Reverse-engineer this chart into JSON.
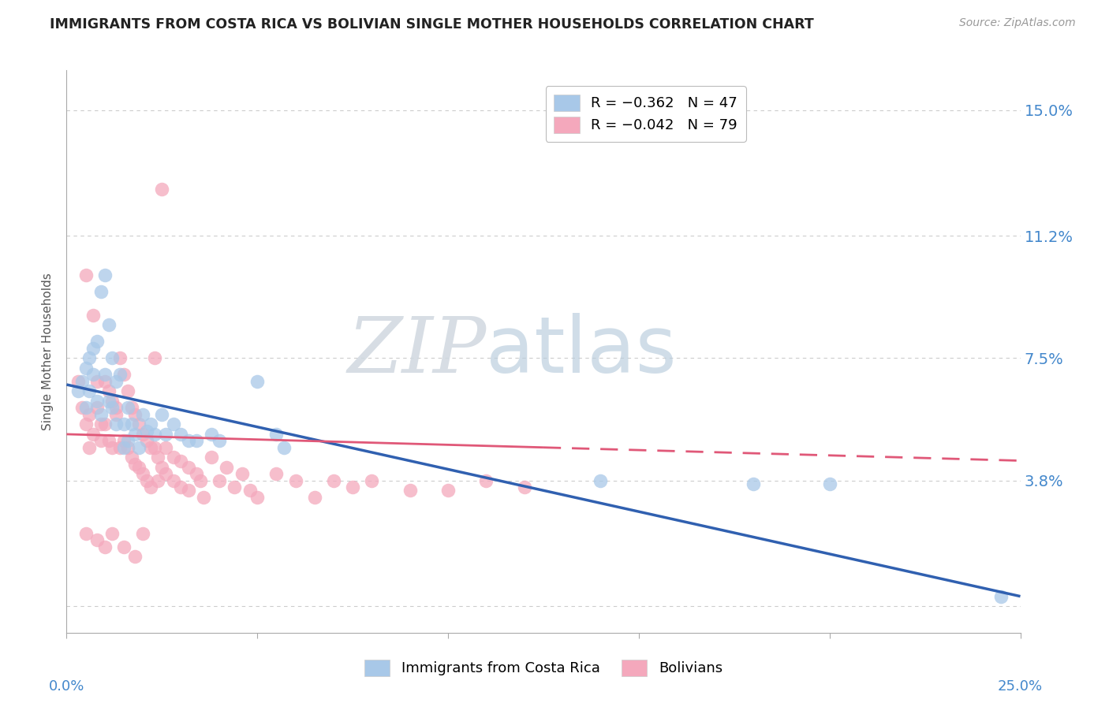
{
  "title": "IMMIGRANTS FROM COSTA RICA VS BOLIVIAN SINGLE MOTHER HOUSEHOLDS CORRELATION CHART",
  "source": "Source: ZipAtlas.com",
  "ylabel_label": "Single Mother Households",
  "ylabel_ticks": [
    0.0,
    0.038,
    0.075,
    0.112,
    0.15
  ],
  "ylabel_tick_labels": [
    "",
    "3.8%",
    "7.5%",
    "11.2%",
    "15.0%"
  ],
  "xmin": 0.0,
  "xmax": 0.25,
  "ymin": -0.008,
  "ymax": 0.162,
  "legend_entries": [
    {
      "label": "R = −0.362   N = 47",
      "color": "#a8c8e8"
    },
    {
      "label": "R = −0.042   N = 79",
      "color": "#f4a8bc"
    }
  ],
  "blue_color": "#a8c8e8",
  "pink_color": "#f4a8bc",
  "trend_blue_color": "#3060b0",
  "trend_pink_color": "#e05878",
  "watermark_zip": "ZIP",
  "watermark_atlas": "atlas",
  "blue_scatter": [
    [
      0.003,
      0.065
    ],
    [
      0.004,
      0.068
    ],
    [
      0.005,
      0.072
    ],
    [
      0.005,
      0.06
    ],
    [
      0.006,
      0.075
    ],
    [
      0.006,
      0.065
    ],
    [
      0.007,
      0.078
    ],
    [
      0.007,
      0.07
    ],
    [
      0.008,
      0.08
    ],
    [
      0.008,
      0.062
    ],
    [
      0.009,
      0.095
    ],
    [
      0.009,
      0.058
    ],
    [
      0.01,
      0.1
    ],
    [
      0.01,
      0.07
    ],
    [
      0.011,
      0.062
    ],
    [
      0.011,
      0.085
    ],
    [
      0.012,
      0.075
    ],
    [
      0.012,
      0.06
    ],
    [
      0.013,
      0.068
    ],
    [
      0.013,
      0.055
    ],
    [
      0.014,
      0.07
    ],
    [
      0.015,
      0.055
    ],
    [
      0.015,
      0.048
    ],
    [
      0.016,
      0.06
    ],
    [
      0.016,
      0.05
    ],
    [
      0.017,
      0.055
    ],
    [
      0.018,
      0.052
    ],
    [
      0.019,
      0.048
    ],
    [
      0.02,
      0.058
    ],
    [
      0.021,
      0.053
    ],
    [
      0.022,
      0.055
    ],
    [
      0.023,
      0.052
    ],
    [
      0.025,
      0.058
    ],
    [
      0.026,
      0.052
    ],
    [
      0.028,
      0.055
    ],
    [
      0.03,
      0.052
    ],
    [
      0.032,
      0.05
    ],
    [
      0.034,
      0.05
    ],
    [
      0.038,
      0.052
    ],
    [
      0.04,
      0.05
    ],
    [
      0.05,
      0.068
    ],
    [
      0.055,
      0.052
    ],
    [
      0.057,
      0.048
    ],
    [
      0.14,
      0.038
    ],
    [
      0.18,
      0.037
    ],
    [
      0.2,
      0.037
    ],
    [
      0.245,
      0.003
    ]
  ],
  "pink_scatter": [
    [
      0.003,
      0.068
    ],
    [
      0.004,
      0.06
    ],
    [
      0.005,
      0.1
    ],
    [
      0.005,
      0.055
    ],
    [
      0.006,
      0.058
    ],
    [
      0.006,
      0.048
    ],
    [
      0.007,
      0.052
    ],
    [
      0.007,
      0.088
    ],
    [
      0.008,
      0.068
    ],
    [
      0.008,
      0.06
    ],
    [
      0.009,
      0.055
    ],
    [
      0.009,
      0.05
    ],
    [
      0.01,
      0.068
    ],
    [
      0.01,
      0.055
    ],
    [
      0.011,
      0.065
    ],
    [
      0.011,
      0.05
    ],
    [
      0.012,
      0.062
    ],
    [
      0.012,
      0.048
    ],
    [
      0.013,
      0.058
    ],
    [
      0.013,
      0.06
    ],
    [
      0.014,
      0.075
    ],
    [
      0.014,
      0.048
    ],
    [
      0.015,
      0.07
    ],
    [
      0.015,
      0.05
    ],
    [
      0.016,
      0.065
    ],
    [
      0.016,
      0.048
    ],
    [
      0.017,
      0.06
    ],
    [
      0.017,
      0.045
    ],
    [
      0.018,
      0.058
    ],
    [
      0.018,
      0.043
    ],
    [
      0.019,
      0.055
    ],
    [
      0.019,
      0.042
    ],
    [
      0.02,
      0.052
    ],
    [
      0.02,
      0.04
    ],
    [
      0.021,
      0.05
    ],
    [
      0.021,
      0.038
    ],
    [
      0.022,
      0.048
    ],
    [
      0.022,
      0.036
    ],
    [
      0.023,
      0.075
    ],
    [
      0.023,
      0.048
    ],
    [
      0.024,
      0.045
    ],
    [
      0.024,
      0.038
    ],
    [
      0.025,
      0.126
    ],
    [
      0.025,
      0.042
    ],
    [
      0.026,
      0.048
    ],
    [
      0.026,
      0.04
    ],
    [
      0.028,
      0.045
    ],
    [
      0.028,
      0.038
    ],
    [
      0.03,
      0.044
    ],
    [
      0.03,
      0.036
    ],
    [
      0.032,
      0.042
    ],
    [
      0.032,
      0.035
    ],
    [
      0.034,
      0.04
    ],
    [
      0.035,
      0.038
    ],
    [
      0.036,
      0.033
    ],
    [
      0.038,
      0.045
    ],
    [
      0.04,
      0.038
    ],
    [
      0.042,
      0.042
    ],
    [
      0.044,
      0.036
    ],
    [
      0.046,
      0.04
    ],
    [
      0.048,
      0.035
    ],
    [
      0.05,
      0.033
    ],
    [
      0.055,
      0.04
    ],
    [
      0.06,
      0.038
    ],
    [
      0.065,
      0.033
    ],
    [
      0.07,
      0.038
    ],
    [
      0.075,
      0.036
    ],
    [
      0.08,
      0.038
    ],
    [
      0.09,
      0.035
    ],
    [
      0.1,
      0.035
    ],
    [
      0.11,
      0.038
    ],
    [
      0.12,
      0.036
    ],
    [
      0.005,
      0.022
    ],
    [
      0.008,
      0.02
    ],
    [
      0.01,
      0.018
    ],
    [
      0.012,
      0.022
    ],
    [
      0.015,
      0.018
    ],
    [
      0.018,
      0.015
    ],
    [
      0.02,
      0.022
    ]
  ],
  "blue_trend_x": [
    0.0,
    0.25
  ],
  "blue_trend_y": [
    0.067,
    0.003
  ],
  "pink_trend_x": [
    0.0,
    0.25
  ],
  "pink_trend_y": [
    0.052,
    0.044
  ],
  "grid_color": "#cccccc",
  "title_color": "#222222",
  "tick_label_color": "#4488cc",
  "axis_color": "#aaaaaa",
  "background_color": "#ffffff"
}
